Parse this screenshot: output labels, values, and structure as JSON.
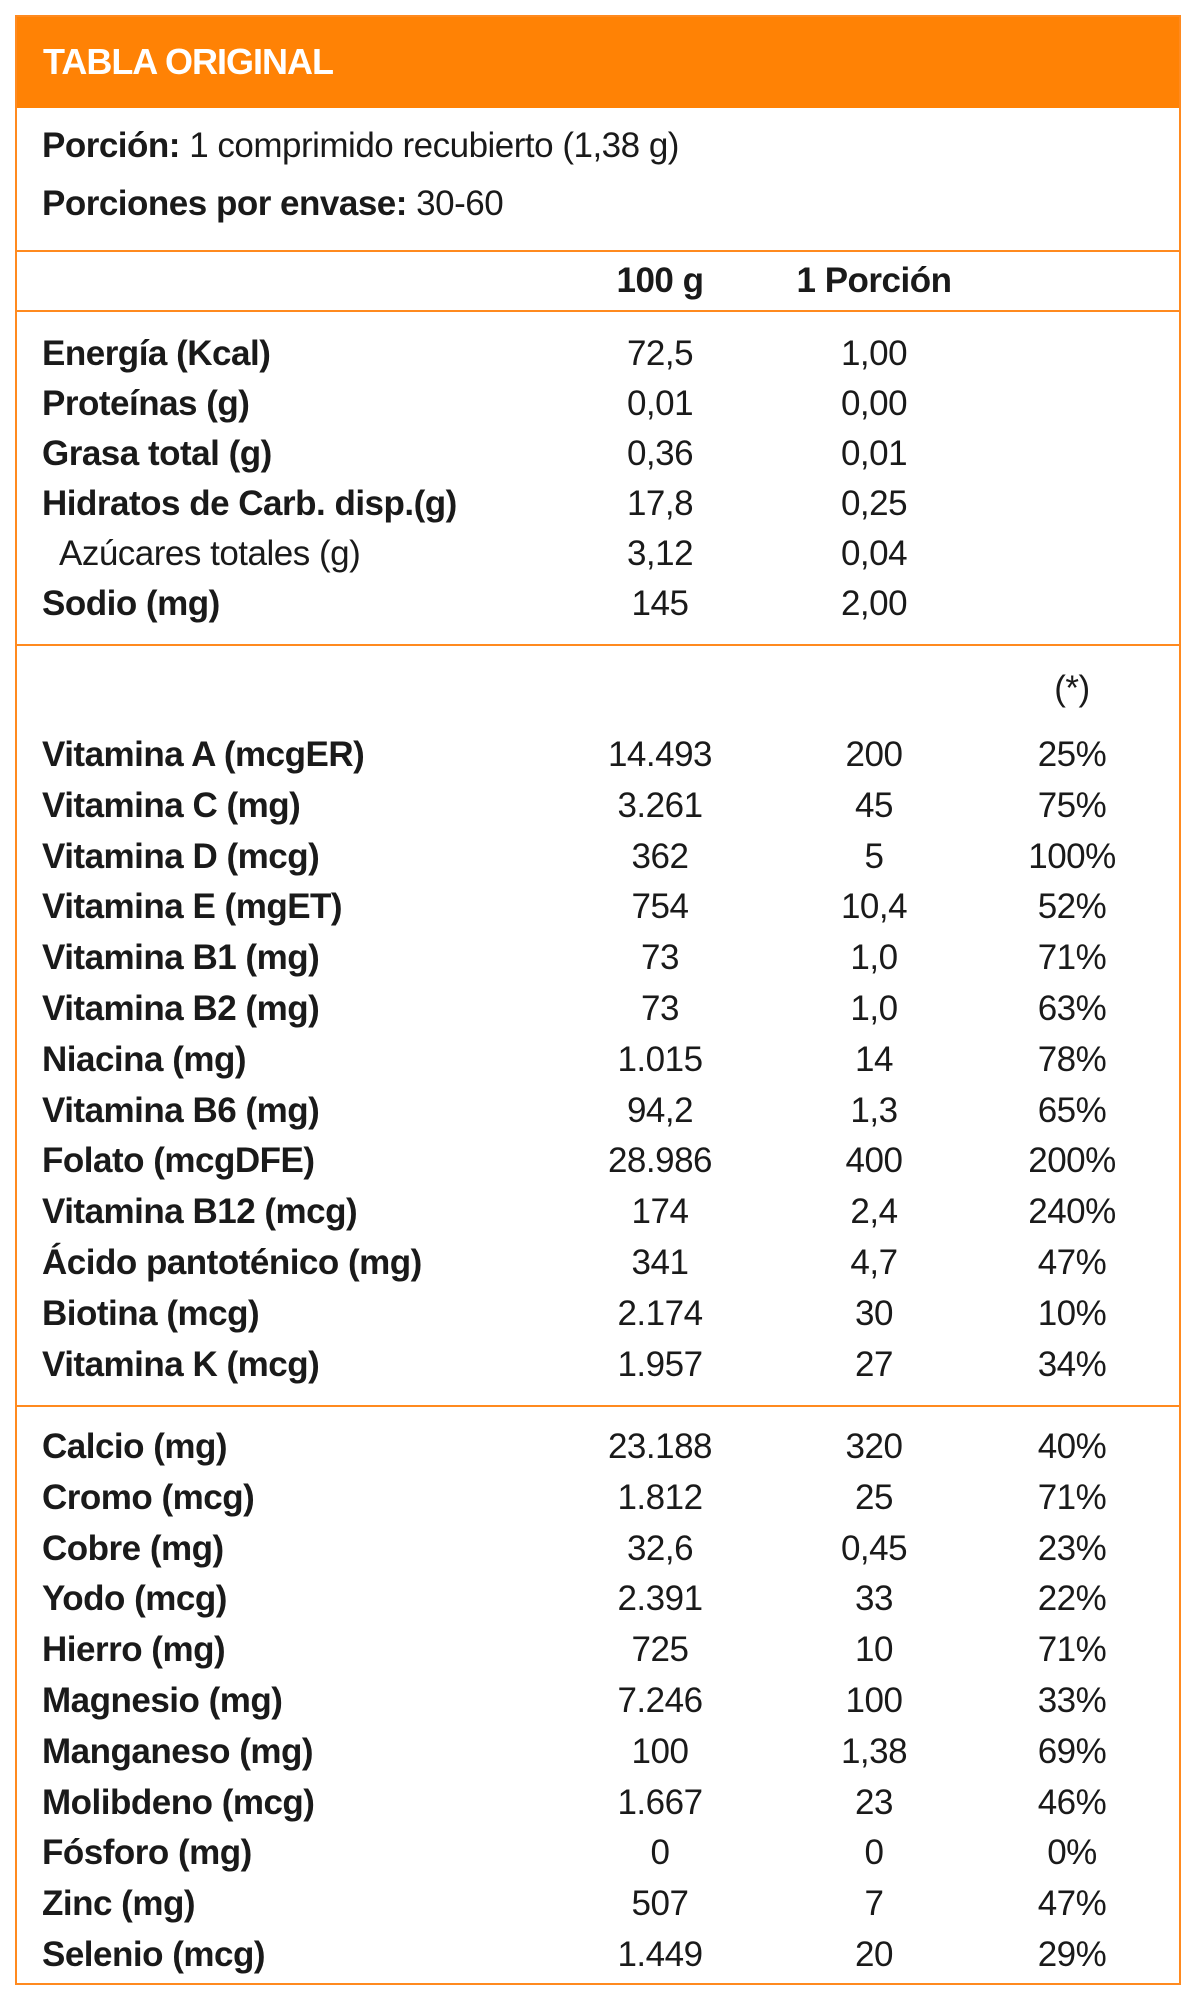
{
  "title": "TABLA ORIGINAL",
  "portion": {
    "label": "Porción:",
    "value": "1 comprimido recubierto (1,38 g)"
  },
  "servings": {
    "label": "Porciones por envase:",
    "value": "30-60"
  },
  "columns": [
    "100 g",
    "1 Porción"
  ],
  "pct_header": "(*)",
  "nutrients": [
    {
      "name": "Energía (Kcal)",
      "per100": "72,5",
      "portion": "1,00"
    },
    {
      "name": "Proteínas (g)",
      "per100": "0,01",
      "portion": "0,00"
    },
    {
      "name": "Grasa total (g)",
      "per100": "0,36",
      "portion": "0,01"
    },
    {
      "name": "Hidratos de Carb. disp.(g)",
      "per100": "17,8",
      "portion": "0,25"
    },
    {
      "name": "Azúcares totales (g)",
      "per100": "3,12",
      "portion": "0,04",
      "sub": true
    },
    {
      "name": "Sodio (mg)",
      "per100": "145",
      "portion": "2,00"
    }
  ],
  "vitamins": [
    {
      "name": "Vitamina A (mcgER)",
      "per100": "14.493",
      "portion": "200",
      "pct": "25%"
    },
    {
      "name": "Vitamina C (mg)",
      "per100": "3.261",
      "portion": "45",
      "pct": "75%"
    },
    {
      "name": "Vitamina D (mcg)",
      "per100": "362",
      "portion": "5",
      "pct": "100%"
    },
    {
      "name": "Vitamina E (mgET)",
      "per100": "754",
      "portion": "10,4",
      "pct": "52%"
    },
    {
      "name": "Vitamina B1 (mg)",
      "per100": "73",
      "portion": "1,0",
      "pct": "71%"
    },
    {
      "name": "Vitamina B2 (mg)",
      "per100": "73",
      "portion": "1,0",
      "pct": "63%"
    },
    {
      "name": "Niacina (mg)",
      "per100": "1.015",
      "portion": "14",
      "pct": "78%"
    },
    {
      "name": "Vitamina B6 (mg)",
      "per100": "94,2",
      "portion": "1,3",
      "pct": "65%"
    },
    {
      "name": "Folato (mcgDFE)",
      "per100": "28.986",
      "portion": "400",
      "pct": "200%"
    },
    {
      "name": "Vitamina B12 (mcg)",
      "per100": "174",
      "portion": "2,4",
      "pct": "240%"
    },
    {
      "name": "Ácido pantoténico (mg)",
      "per100": "341",
      "portion": "4,7",
      "pct": "47%"
    },
    {
      "name": "Biotina (mcg)",
      "per100": "2.174",
      "portion": "30",
      "pct": "10%"
    },
    {
      "name": "Vitamina K (mcg)",
      "per100": "1.957",
      "portion": "27",
      "pct": "34%"
    }
  ],
  "minerals": [
    {
      "name": "Calcio (mg)",
      "per100": "23.188",
      "portion": "320",
      "pct": "40%"
    },
    {
      "name": "Cromo (mcg)",
      "per100": "1.812",
      "portion": "25",
      "pct": "71%"
    },
    {
      "name": "Cobre (mg)",
      "per100": "32,6",
      "portion": "0,45",
      "pct": "23%"
    },
    {
      "name": "Yodo (mcg)",
      "per100": "2.391",
      "portion": "33",
      "pct": "22%"
    },
    {
      "name": "Hierro (mg)",
      "per100": "725",
      "portion": "10",
      "pct": "71%"
    },
    {
      "name": "Magnesio (mg)",
      "per100": "7.246",
      "portion": "100",
      "pct": "33%"
    },
    {
      "name": "Manganeso (mg)",
      "per100": "100",
      "portion": "1,38",
      "pct": "69%"
    },
    {
      "name": "Molibdeno (mcg)",
      "per100": "1.667",
      "portion": "23",
      "pct": "46%"
    },
    {
      "name": "Fósforo (mg)",
      "per100": "0",
      "portion": "0",
      "pct": "0%"
    },
    {
      "name": "Zinc (mg)",
      "per100": "507",
      "portion": "7",
      "pct": "47%"
    },
    {
      "name": "Selenio (mcg)",
      "per100": "1.449",
      "portion": "20",
      "pct": "29%"
    }
  ],
  "colors": {
    "accent": "#ff8205",
    "text": "#1a1a1a"
  }
}
